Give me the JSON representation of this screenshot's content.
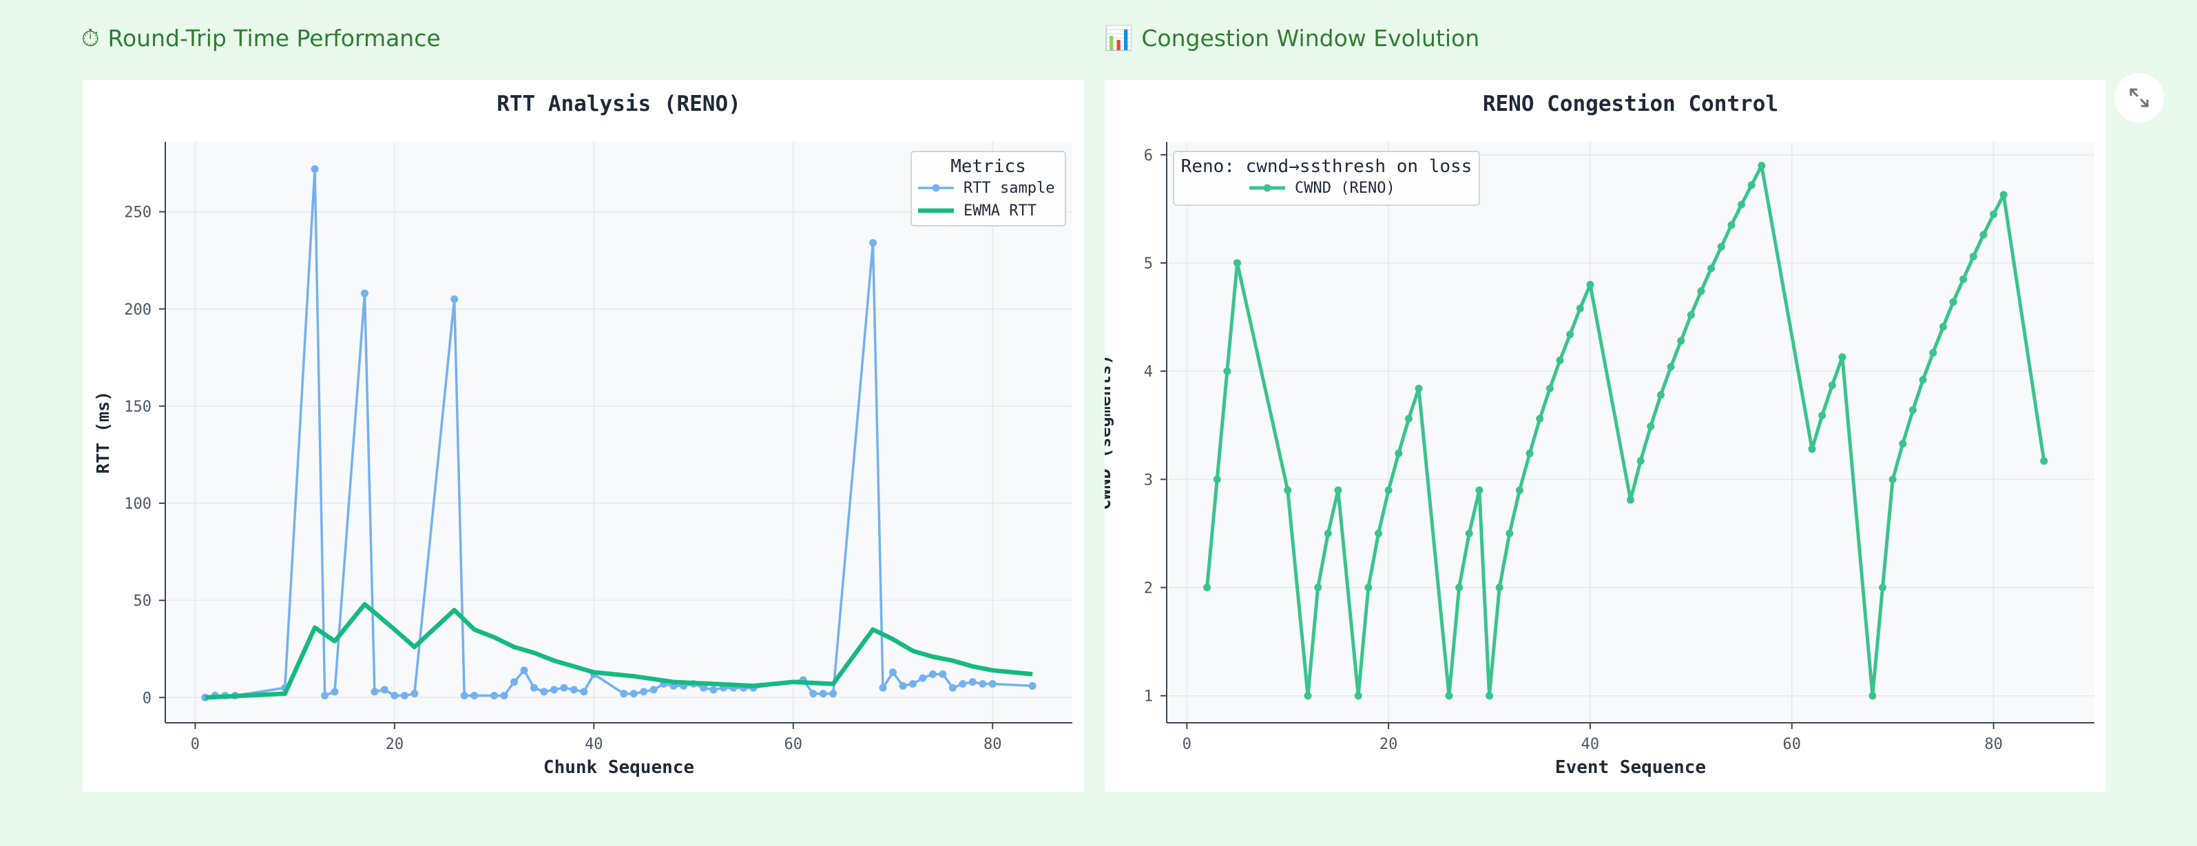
{
  "panels": {
    "left_title": "Round-Trip Time Performance",
    "left_icon": "stopwatch-icon",
    "right_title": "Congestion Window Evolution",
    "right_icon": "bar-chart-icon"
  },
  "colors": {
    "rtt_sample": "#74b0ef",
    "ewma": "#16b97f",
    "cwnd": "#3bc38d",
    "title_green": "#2e7d32",
    "plot_bg": "#f7f9fb"
  },
  "chart_data": [
    {
      "type": "line",
      "title": "RTT Analysis (RENO)",
      "xlabel": "Chunk Sequence",
      "ylabel": "RTT (ms)",
      "xlim": [
        -3,
        88
      ],
      "ylim": [
        -13,
        286
      ],
      "xticks": [
        0,
        20,
        40,
        60,
        80
      ],
      "yticks": [
        0,
        50,
        100,
        150,
        200,
        250
      ],
      "grid": true,
      "legend": {
        "title": "Metrics",
        "position": "top-right",
        "entries": [
          "RTT sample",
          "EWMA RTT"
        ]
      },
      "series": [
        {
          "name": "RTT sample",
          "x": [
            1,
            2,
            3,
            4,
            9,
            12,
            13,
            14,
            17,
            18,
            19,
            20,
            21,
            22,
            26,
            27,
            28,
            30,
            31,
            32,
            33,
            34,
            35,
            36,
            37,
            38,
            39,
            40,
            43,
            44,
            45,
            46,
            47,
            48,
            49,
            50,
            51,
            52,
            53,
            54,
            55,
            56,
            61,
            62,
            63,
            64,
            68,
            69,
            70,
            71,
            72,
            73,
            74,
            75,
            76,
            77,
            78,
            79,
            80,
            84
          ],
          "y": [
            0,
            1,
            1,
            1,
            5,
            272,
            1,
            3,
            208,
            3,
            4,
            1,
            1,
            2,
            205,
            1,
            1,
            1,
            1,
            8,
            14,
            5,
            3,
            4,
            5,
            4,
            3,
            12,
            2,
            2,
            3,
            4,
            7,
            6,
            6,
            7,
            5,
            4,
            5,
            5,
            5,
            5,
            9,
            2,
            2,
            2,
            234,
            5,
            13,
            6,
            7,
            10,
            12,
            12,
            5,
            7,
            8,
            7,
            7,
            6
          ]
        },
        {
          "name": "EWMA RTT",
          "x": [
            1,
            9,
            12,
            14,
            17,
            20,
            22,
            26,
            28,
            30,
            32,
            34,
            36,
            38,
            40,
            44,
            48,
            52,
            56,
            60,
            64,
            68,
            70,
            72,
            74,
            76,
            78,
            80,
            84
          ],
          "y": [
            0,
            2,
            36,
            29,
            48,
            35,
            26,
            45,
            35,
            31,
            26,
            23,
            19,
            16,
            13,
            11,
            8,
            7,
            6,
            8,
            7,
            35,
            30,
            24,
            21,
            19,
            16,
            14,
            12
          ]
        }
      ]
    },
    {
      "type": "line",
      "title": "RENO Congestion Control",
      "xlabel": "Event Sequence",
      "ylabel": "CWND (segments)",
      "xlim": [
        -2,
        90
      ],
      "ylim": [
        0.75,
        6.12
      ],
      "xticks": [
        0,
        20,
        40,
        60,
        80
      ],
      "yticks": [
        1,
        2,
        3,
        4,
        5,
        6
      ],
      "grid": true,
      "legend": {
        "title": "Reno: cwnd→ssthresh on loss",
        "position": "top-left",
        "entries": [
          "CWND (RENO)"
        ]
      },
      "series": [
        {
          "name": "CWND (RENO)",
          "x": [
            2,
            3,
            4,
            5,
            10,
            12,
            13,
            14,
            15,
            17,
            18,
            19,
            20,
            21,
            22,
            23,
            26,
            27,
            28,
            29,
            30,
            31,
            32,
            33,
            34,
            35,
            36,
            37,
            38,
            39,
            40,
            44,
            45,
            46,
            47,
            48,
            49,
            50,
            51,
            52,
            53,
            54,
            55,
            56,
            57,
            62,
            63,
            64,
            65,
            68,
            69,
            70,
            71,
            72,
            73,
            74,
            75,
            76,
            77,
            78,
            79,
            80,
            81,
            85
          ],
          "y": [
            2,
            3,
            4,
            5,
            2.9,
            1,
            2,
            2.5,
            2.9,
            1,
            2,
            2.5,
            2.9,
            3.24,
            3.56,
            3.84,
            1,
            2,
            2.5,
            2.9,
            1,
            2,
            2.5,
            2.9,
            3.24,
            3.56,
            3.84,
            4.1,
            4.34,
            4.58,
            4.8,
            2.81,
            3.17,
            3.49,
            3.78,
            4.04,
            4.28,
            4.52,
            4.74,
            4.95,
            5.15,
            5.35,
            5.54,
            5.72,
            5.9,
            3.28,
            3.59,
            3.87,
            4.13,
            1,
            2,
            3,
            3.33,
            3.64,
            3.92,
            4.17,
            4.41,
            4.64,
            4.85,
            5.06,
            5.26,
            5.45,
            5.63,
            3.17
          ]
        }
      ]
    }
  ]
}
